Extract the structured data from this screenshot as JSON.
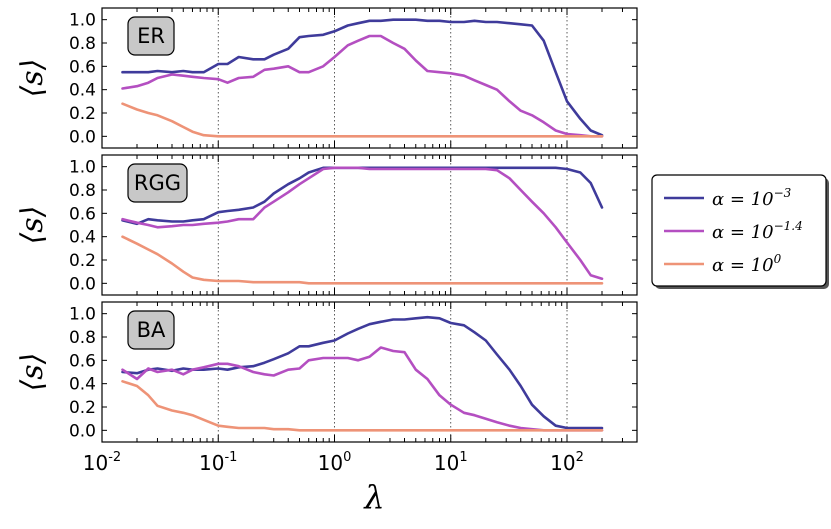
{
  "chart_data": {
    "type": "line",
    "xscale": "log",
    "xlim": [
      0.01,
      400
    ],
    "ylim": [
      -0.1,
      1.1
    ],
    "xlabel": "λ",
    "ylabel": "⟨s⟩",
    "x_ticks": [
      {
        "value": 0.01,
        "base": "10",
        "exp": "-2"
      },
      {
        "value": 0.1,
        "base": "10",
        "exp": "-1"
      },
      {
        "value": 1,
        "base": "10",
        "exp": "0"
      },
      {
        "value": 10,
        "base": "10",
        "exp": "1"
      },
      {
        "value": 100,
        "base": "10",
        "exp": "2"
      }
    ],
    "y_ticks": [
      "0.0",
      "0.2",
      "0.4",
      "0.6",
      "0.8",
      "1.0"
    ],
    "x": [
      0.015,
      0.02,
      0.025,
      0.03,
      0.04,
      0.05,
      0.06,
      0.075,
      0.1,
      0.12,
      0.15,
      0.2,
      0.25,
      0.3,
      0.4,
      0.5,
      0.6,
      0.8,
      1.0,
      1.3,
      1.6,
      2.0,
      2.5,
      3.2,
      4.0,
      5.0,
      6.3,
      8.0,
      10,
      13,
      16,
      20,
      25,
      32,
      40,
      50,
      63,
      80,
      100,
      130,
      160,
      200
    ],
    "legend": {
      "position": "right",
      "entries": [
        {
          "base": "α = 10",
          "exp": "−3",
          "color": "#3f3b9b"
        },
        {
          "base": "α = 10",
          "exp": "−1.4",
          "color": "#b44fc1"
        },
        {
          "base": "α = 10",
          "exp": "0",
          "color": "#ee9377"
        }
      ]
    },
    "panels": [
      {
        "label": "ER",
        "series": [
          {
            "name": "α = 10^-3",
            "color": "#3f3b9b",
            "values": [
              0.55,
              0.55,
              0.55,
              0.56,
              0.55,
              0.56,
              0.55,
              0.55,
              0.62,
              0.62,
              0.68,
              0.66,
              0.66,
              0.7,
              0.75,
              0.85,
              0.86,
              0.87,
              0.9,
              0.95,
              0.97,
              0.99,
              0.99,
              1.0,
              1.0,
              1.0,
              0.99,
              0.99,
              0.98,
              0.98,
              0.99,
              0.98,
              0.98,
              0.97,
              0.96,
              0.95,
              0.82,
              0.55,
              0.3,
              0.15,
              0.05,
              0.01
            ]
          },
          {
            "name": "α = 10^-1.4",
            "color": "#b44fc1",
            "values": [
              0.41,
              0.43,
              0.46,
              0.5,
              0.53,
              0.52,
              0.51,
              0.5,
              0.49,
              0.46,
              0.5,
              0.51,
              0.57,
              0.58,
              0.6,
              0.55,
              0.55,
              0.6,
              0.68,
              0.78,
              0.82,
              0.86,
              0.86,
              0.8,
              0.75,
              0.65,
              0.56,
              0.55,
              0.54,
              0.52,
              0.48,
              0.44,
              0.4,
              0.3,
              0.22,
              0.18,
              0.12,
              0.05,
              0.02,
              0.01,
              0.0,
              0.0
            ]
          },
          {
            "name": "α = 10^0",
            "color": "#ee9377",
            "values": [
              0.28,
              0.23,
              0.2,
              0.18,
              0.13,
              0.08,
              0.04,
              0.01,
              0.0,
              0.0,
              0.0,
              0.0,
              0.0,
              0.0,
              0.0,
              0.0,
              0.0,
              0.0,
              0.0,
              0.0,
              0.0,
              0.0,
              0.0,
              0.0,
              0.0,
              0.0,
              0.0,
              0.0,
              0.0,
              0.0,
              0.0,
              0.0,
              0.0,
              0.0,
              0.0,
              0.0,
              0.0,
              0.0,
              0.0,
              0.0,
              0.0,
              0.0
            ]
          }
        ]
      },
      {
        "label": "RGG",
        "series": [
          {
            "name": "α = 10^-3",
            "color": "#3f3b9b",
            "values": [
              0.54,
              0.51,
              0.55,
              0.54,
              0.53,
              0.53,
              0.54,
              0.55,
              0.61,
              0.62,
              0.63,
              0.65,
              0.7,
              0.77,
              0.85,
              0.9,
              0.95,
              0.99,
              0.99,
              0.99,
              0.99,
              0.99,
              0.99,
              0.99,
              0.99,
              0.99,
              0.99,
              0.99,
              0.99,
              0.99,
              0.99,
              0.99,
              0.99,
              0.99,
              0.99,
              0.99,
              0.99,
              0.99,
              0.98,
              0.95,
              0.86,
              0.65
            ]
          },
          {
            "name": "α = 10^-1.4",
            "color": "#b44fc1",
            "values": [
              0.55,
              0.52,
              0.5,
              0.48,
              0.49,
              0.5,
              0.5,
              0.51,
              0.52,
              0.53,
              0.55,
              0.55,
              0.65,
              0.7,
              0.78,
              0.85,
              0.9,
              0.98,
              0.99,
              0.99,
              0.99,
              0.98,
              0.98,
              0.98,
              0.98,
              0.98,
              0.98,
              0.98,
              0.98,
              0.98,
              0.98,
              0.98,
              0.97,
              0.9,
              0.8,
              0.7,
              0.6,
              0.48,
              0.35,
              0.2,
              0.07,
              0.04
            ]
          },
          {
            "name": "α = 10^0",
            "color": "#ee9377",
            "values": [
              0.4,
              0.34,
              0.29,
              0.25,
              0.17,
              0.1,
              0.05,
              0.03,
              0.02,
              0.02,
              0.02,
              0.01,
              0.01,
              0.01,
              0.01,
              0.01,
              0.0,
              0.0,
              0.0,
              0.0,
              0.0,
              0.0,
              0.0,
              0.0,
              0.0,
              0.0,
              0.0,
              0.0,
              0.0,
              0.0,
              0.0,
              0.0,
              0.0,
              0.0,
              0.0,
              0.0,
              0.0,
              0.0,
              0.0,
              0.0,
              0.0,
              0.0
            ]
          }
        ]
      },
      {
        "label": "BA",
        "series": [
          {
            "name": "α = 10^-3",
            "color": "#3f3b9b",
            "values": [
              0.5,
              0.49,
              0.52,
              0.53,
              0.51,
              0.53,
              0.52,
              0.52,
              0.53,
              0.52,
              0.54,
              0.55,
              0.58,
              0.61,
              0.66,
              0.72,
              0.72,
              0.75,
              0.77,
              0.83,
              0.87,
              0.91,
              0.93,
              0.95,
              0.95,
              0.96,
              0.97,
              0.96,
              0.92,
              0.9,
              0.84,
              0.77,
              0.65,
              0.52,
              0.38,
              0.22,
              0.12,
              0.04,
              0.02,
              0.02,
              0.02,
              0.02
            ]
          },
          {
            "name": "α = 10^-1.4",
            "color": "#b44fc1",
            "values": [
              0.52,
              0.44,
              0.53,
              0.5,
              0.52,
              0.48,
              0.52,
              0.54,
              0.57,
              0.57,
              0.55,
              0.5,
              0.48,
              0.47,
              0.52,
              0.53,
              0.6,
              0.62,
              0.62,
              0.62,
              0.6,
              0.63,
              0.71,
              0.68,
              0.67,
              0.52,
              0.44,
              0.3,
              0.22,
              0.15,
              0.13,
              0.1,
              0.07,
              0.04,
              0.02,
              0.01,
              0.0,
              0.0,
              0.0,
              0.0,
              0.0,
              0.0
            ]
          },
          {
            "name": "α = 10^0",
            "color": "#ee9377",
            "values": [
              0.42,
              0.38,
              0.3,
              0.21,
              0.17,
              0.15,
              0.13,
              0.09,
              0.04,
              0.03,
              0.02,
              0.02,
              0.02,
              0.01,
              0.01,
              0.0,
              0.0,
              0.0,
              0.0,
              0.0,
              0.0,
              0.0,
              0.0,
              0.0,
              0.0,
              0.0,
              0.0,
              0.0,
              0.0,
              0.0,
              0.0,
              0.0,
              0.0,
              0.0,
              0.0,
              0.0,
              0.0,
              0.0,
              0.0,
              0.0,
              0.0,
              0.0
            ]
          }
        ]
      }
    ]
  }
}
